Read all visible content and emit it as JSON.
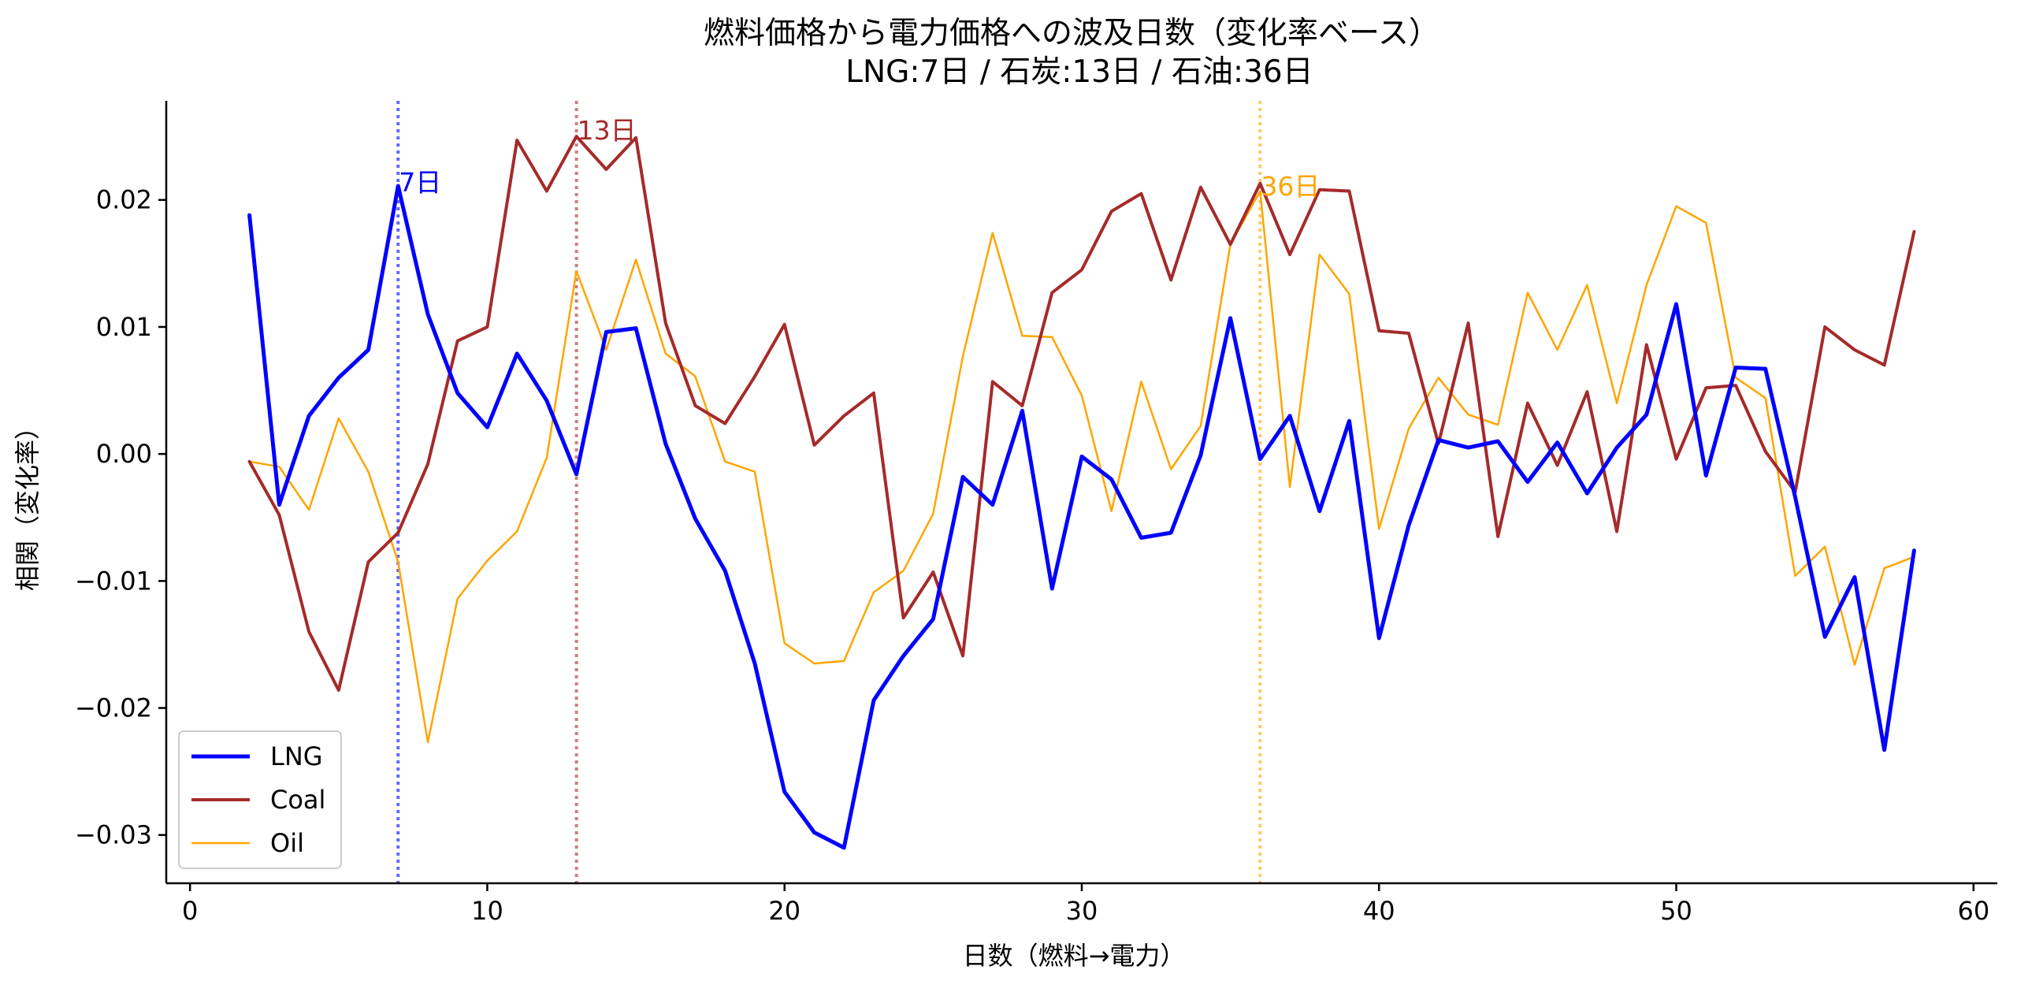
{
  "chart_data": {
    "type": "line",
    "title": "燃料価格から電力価格への波及日数（変化率ベース）",
    "subtitle": "LNG:7日 / 石炭:13日 / 石油:36日",
    "xlabel": "日数（燃料→電力）",
    "ylabel": "相関（変化率）",
    "xlim": [
      -0.8,
      60.8
    ],
    "ylim": [
      -0.0338,
      0.0278
    ],
    "xticks": [
      0,
      10,
      20,
      30,
      40,
      50,
      60
    ],
    "xtick_labels": [
      "0",
      "10",
      "20",
      "30",
      "40",
      "50",
      "60"
    ],
    "yticks": [
      -0.03,
      -0.02,
      -0.01,
      0.0,
      0.01,
      0.02
    ],
    "ytick_labels": [
      "−0.03",
      "−0.02",
      "−0.01",
      "0.00",
      "0.01",
      "0.02"
    ],
    "legend_position": "lower-left",
    "x": [
      2,
      3,
      4,
      5,
      6,
      7,
      8,
      9,
      10,
      11,
      12,
      13,
      14,
      15,
      16,
      17,
      18,
      19,
      20,
      21,
      22,
      23,
      24,
      25,
      26,
      27,
      28,
      29,
      30,
      31,
      32,
      33,
      34,
      35,
      36,
      37,
      38,
      39,
      40,
      41,
      42,
      43,
      44,
      45,
      46,
      47,
      48,
      49,
      50,
      51,
      52,
      53,
      54,
      55,
      56,
      57,
      58
    ],
    "series": [
      {
        "name": "LNG",
        "color": "#0000ff",
        "width": 5,
        "values": [
          0.0188,
          -0.004,
          0.003,
          0.006,
          0.0082,
          0.0211,
          0.011,
          0.0048,
          0.0021,
          0.0079,
          0.0042,
          -0.0016,
          0.0096,
          0.0099,
          0.0008,
          -0.0051,
          -0.0092,
          -0.0165,
          -0.0266,
          -0.0298,
          -0.031,
          -0.0194,
          -0.0159,
          -0.013,
          -0.0018,
          -0.004,
          0.0034,
          -0.0106,
          -0.0002,
          -0.002,
          -0.0066,
          -0.0062,
          -0.0001,
          0.0107,
          -0.0004,
          0.003,
          -0.0045,
          0.0026,
          -0.0145,
          -0.0056,
          0.0011,
          0.0005,
          0.001,
          -0.0022,
          0.0009,
          -0.0031,
          0.0005,
          0.0031,
          0.0118,
          -0.0017,
          0.0068,
          0.0067,
          -0.0034,
          -0.0144,
          -0.0097,
          -0.0233,
          -0.0076
        ]
      },
      {
        "name": "Coal",
        "color": "#a52a2a",
        "width": 4,
        "values": [
          -0.0006,
          -0.0048,
          -0.014,
          -0.0186,
          -0.0085,
          -0.0062,
          -0.0008,
          0.0089,
          0.01,
          0.0247,
          0.0207,
          0.025,
          0.0224,
          0.0249,
          0.0103,
          0.0038,
          0.0024,
          0.0061,
          0.0102,
          0.0007,
          0.003,
          0.0048,
          -0.0129,
          -0.0093,
          -0.0159,
          0.0057,
          0.0038,
          0.0127,
          0.0145,
          0.0191,
          0.0205,
          0.0137,
          0.021,
          0.0165,
          0.0213,
          0.0157,
          0.0208,
          0.0207,
          0.0097,
          0.0095,
          0.0008,
          0.0103,
          -0.0065,
          0.004,
          -0.0009,
          0.0049,
          -0.0061,
          0.0086,
          -0.0004,
          0.0052,
          0.0054,
          0.0002,
          -0.003,
          0.01,
          0.0082,
          0.007,
          0.0175
        ]
      },
      {
        "name": "Oil",
        "color": "#ffa500",
        "width": 2.5,
        "values": [
          -0.0006,
          -0.001,
          -0.0044,
          0.0028,
          -0.0014,
          -0.0085,
          -0.0227,
          -0.0114,
          -0.0084,
          -0.0061,
          -0.0003,
          0.0144,
          0.0082,
          0.0153,
          0.0079,
          0.0061,
          -0.0006,
          -0.0014,
          -0.0149,
          -0.0165,
          -0.0163,
          -0.0109,
          -0.0092,
          -0.0047,
          0.0077,
          0.0174,
          0.0093,
          0.0092,
          0.0046,
          -0.0045,
          0.0057,
          -0.0012,
          0.0022,
          0.0165,
          0.0207,
          -0.0026,
          0.0157,
          0.0126,
          -0.0059,
          0.002,
          0.006,
          0.0031,
          0.0023,
          0.0127,
          0.0082,
          0.0133,
          0.004,
          0.0133,
          0.0195,
          0.0182,
          0.006,
          0.0044,
          -0.0096,
          -0.0073,
          -0.0166,
          -0.009,
          -0.0081
        ]
      }
    ],
    "vlines": [
      {
        "x": 7,
        "color": "#0000ff",
        "label": "7日",
        "label_y": 0.0214
      },
      {
        "x": 13,
        "color": "#a52a2a",
        "label": "13日",
        "label_y": 0.0255
      },
      {
        "x": 36,
        "color": "#ffa500",
        "label": "36日",
        "label_y": 0.0211
      }
    ]
  }
}
